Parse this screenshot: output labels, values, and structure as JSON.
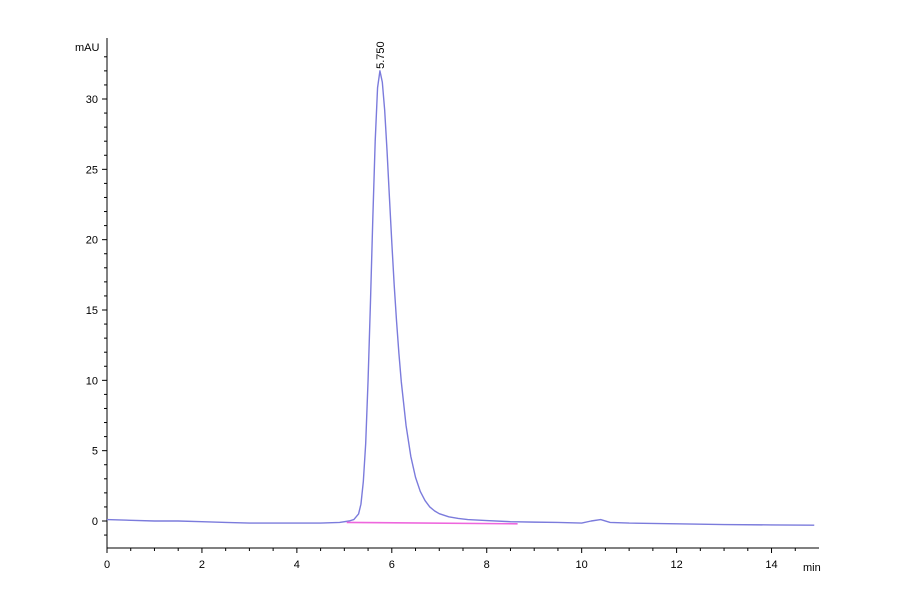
{
  "chart_data": {
    "type": "line",
    "title": "",
    "xlabel": "min",
    "ylabel": "mAU",
    "xlim": [
      0,
      15
    ],
    "ylim": [
      -2,
      34
    ],
    "x_ticks": [
      0,
      2,
      4,
      6,
      8,
      10,
      12,
      14
    ],
    "y_ticks": [
      0,
      5,
      10,
      15,
      20,
      25,
      30
    ],
    "grid": false,
    "legend": "none",
    "series": [
      {
        "color": "#7b7bdc",
        "x": [
          0,
          0.5,
          1,
          1.5,
          2,
          2.5,
          3,
          3.5,
          4,
          4.5,
          4.9,
          5.1,
          5.2,
          5.3,
          5.35,
          5.4,
          5.45,
          5.5,
          5.55,
          5.6,
          5.65,
          5.7,
          5.75,
          5.8,
          5.85,
          5.9,
          5.95,
          6.0,
          6.05,
          6.1,
          6.15,
          6.2,
          6.3,
          6.4,
          6.5,
          6.6,
          6.7,
          6.8,
          6.9,
          7.0,
          7.2,
          7.4,
          7.6,
          8.0,
          8.5,
          9.0,
          9.5,
          10.0,
          10.2,
          10.4,
          10.6,
          11.0,
          12.0,
          13.0,
          14.0,
          14.9
        ],
        "y": [
          0.1,
          0.05,
          0.0,
          0.0,
          -0.05,
          -0.1,
          -0.15,
          -0.15,
          -0.15,
          -0.15,
          -0.1,
          0.0,
          0.1,
          0.5,
          1.2,
          2.8,
          5.5,
          10.0,
          15.5,
          21.5,
          27.0,
          30.8,
          32.0,
          31.2,
          29.2,
          26.3,
          23.0,
          19.8,
          16.8,
          14.2,
          11.9,
          9.9,
          6.8,
          4.6,
          3.1,
          2.1,
          1.45,
          1.0,
          0.72,
          0.52,
          0.3,
          0.18,
          0.1,
          0.03,
          -0.05,
          -0.08,
          -0.1,
          -0.15,
          0.0,
          0.1,
          -0.1,
          -0.15,
          -0.2,
          -0.25,
          -0.28,
          -0.3
        ]
      },
      {
        "color": "#ee66dd",
        "x": [
          5.05,
          8.65
        ],
        "y": [
          -0.1,
          -0.2
        ]
      }
    ],
    "annotations": [
      {
        "text": "5.750",
        "x": 5.75,
        "y": 32.0
      }
    ]
  }
}
